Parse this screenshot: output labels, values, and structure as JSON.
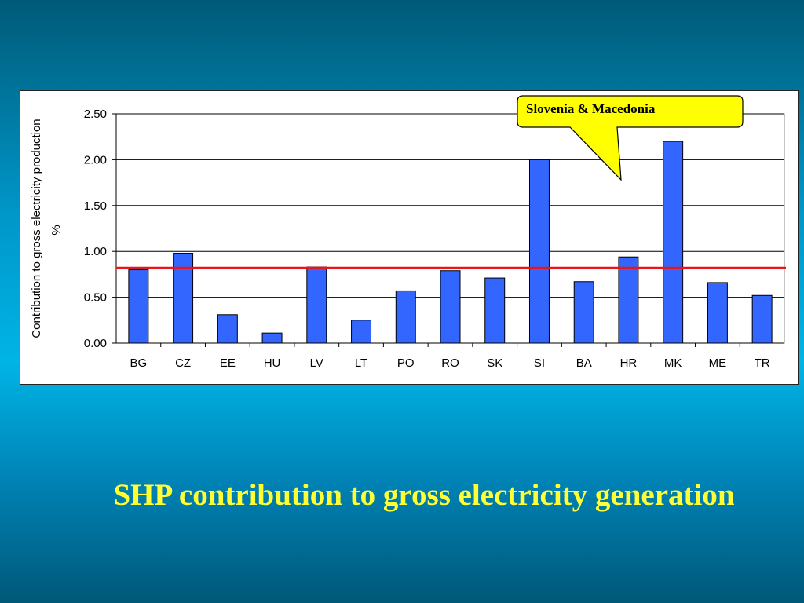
{
  "slide": {
    "title": "SHP contribution to gross electricity generation"
  },
  "chart_data": {
    "type": "bar",
    "categories": [
      "BG",
      "CZ",
      "EE",
      "HU",
      "LV",
      "LT",
      "PO",
      "RO",
      "SK",
      "SI",
      "BA",
      "HR",
      "MK",
      "ME",
      "TR"
    ],
    "values": [
      0.8,
      0.98,
      0.31,
      0.11,
      0.83,
      0.25,
      0.57,
      0.79,
      0.71,
      2.0,
      0.67,
      0.94,
      2.2,
      0.66,
      0.52
    ],
    "ylabel_lines": [
      "Contribution to gross electricity  production",
      "%"
    ],
    "ylim": [
      0,
      2.5
    ],
    "yticks": [
      "0.00",
      "0.50",
      "1.00",
      "1.50",
      "2.00",
      "2.50"
    ],
    "grid": true,
    "reference_line": {
      "value": 0.82,
      "color": "#e8141e"
    },
    "bar_color": "#3366ff",
    "annotation": {
      "text": "Slovenia & Macedonia",
      "fill": "#ffff00"
    }
  }
}
